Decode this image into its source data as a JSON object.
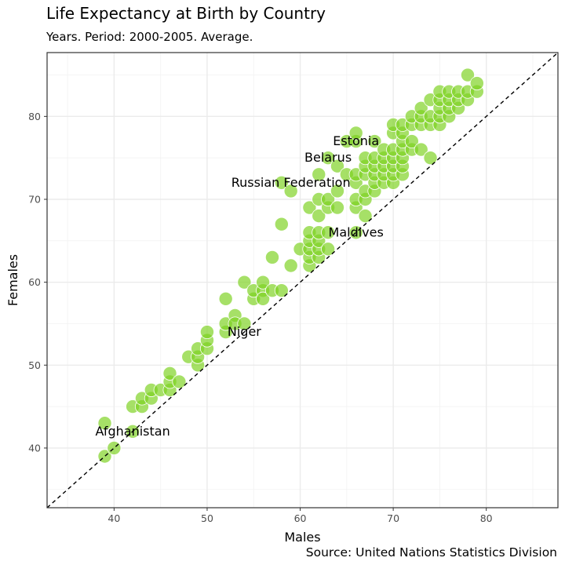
{
  "chart_data": {
    "type": "scatter",
    "title": "Life Expectancy at Birth by Country",
    "subtitle": "Years. Period: 2000-2005. Average.",
    "caption": "Source: United Nations Statistics Division",
    "xlabel": "Males",
    "ylabel": "Females",
    "xlim": [
      32.8,
      87.7
    ],
    "ylim": [
      32.8,
      87.7
    ],
    "x_ticks": [
      40,
      50,
      60,
      70,
      80
    ],
    "y_ticks": [
      40,
      50,
      60,
      70,
      80
    ],
    "grid": true,
    "reference_line": "y = x (dashed)",
    "point_color": "#7cd21f",
    "annotations": [
      {
        "label": "Estonia",
        "x": 66,
        "y": 77
      },
      {
        "label": "Belarus",
        "x": 63,
        "y": 75
      },
      {
        "label": "Russian Federation",
        "x": 59,
        "y": 72
      },
      {
        "label": "Maldives",
        "x": 66,
        "y": 66
      },
      {
        "label": "Niger",
        "x": 54,
        "y": 54
      },
      {
        "label": "Afghanistan",
        "x": 42,
        "y": 42
      }
    ],
    "points": [
      [
        39,
        39
      ],
      [
        39,
        43
      ],
      [
        40,
        40
      ],
      [
        42,
        42
      ],
      [
        42,
        45
      ],
      [
        43,
        45
      ],
      [
        43,
        46
      ],
      [
        44,
        46
      ],
      [
        44,
        47
      ],
      [
        45,
        47
      ],
      [
        46,
        47
      ],
      [
        46,
        48
      ],
      [
        46,
        49
      ],
      [
        47,
        48
      ],
      [
        48,
        51
      ],
      [
        49,
        50
      ],
      [
        49,
        51
      ],
      [
        49,
        52
      ],
      [
        50,
        52
      ],
      [
        50,
        53
      ],
      [
        50,
        54
      ],
      [
        52,
        54
      ],
      [
        52,
        55
      ],
      [
        52,
        58
      ],
      [
        53,
        56
      ],
      [
        53,
        55
      ],
      [
        54,
        55
      ],
      [
        54,
        60
      ],
      [
        55,
        58
      ],
      [
        55,
        59
      ],
      [
        56,
        59
      ],
      [
        56,
        60
      ],
      [
        56,
        58
      ],
      [
        57,
        59
      ],
      [
        57,
        63
      ],
      [
        58,
        59
      ],
      [
        58,
        67
      ],
      [
        58,
        72
      ],
      [
        59,
        71
      ],
      [
        59,
        62
      ],
      [
        60,
        64
      ],
      [
        61,
        62
      ],
      [
        61,
        63
      ],
      [
        61,
        64
      ],
      [
        61,
        65
      ],
      [
        61,
        66
      ],
      [
        61,
        69
      ],
      [
        62,
        63
      ],
      [
        62,
        64
      ],
      [
        62,
        65
      ],
      [
        62,
        66
      ],
      [
        62,
        68
      ],
      [
        62,
        70
      ],
      [
        62,
        73
      ],
      [
        63,
        64
      ],
      [
        63,
        66
      ],
      [
        63,
        69
      ],
      [
        63,
        70
      ],
      [
        63,
        75
      ],
      [
        64,
        69
      ],
      [
        64,
        71
      ],
      [
        64,
        74
      ],
      [
        65,
        73
      ],
      [
        65,
        77
      ],
      [
        66,
        66
      ],
      [
        66,
        69
      ],
      [
        66,
        70
      ],
      [
        66,
        72
      ],
      [
        66,
        73
      ],
      [
        66,
        77
      ],
      [
        66,
        78
      ],
      [
        67,
        68
      ],
      [
        67,
        70
      ],
      [
        67,
        71
      ],
      [
        67,
        73
      ],
      [
        67,
        74
      ],
      [
        67,
        75
      ],
      [
        68,
        71
      ],
      [
        68,
        72
      ],
      [
        68,
        73
      ],
      [
        68,
        74
      ],
      [
        68,
        75
      ],
      [
        68,
        77
      ],
      [
        69,
        72
      ],
      [
        69,
        73
      ],
      [
        69,
        74
      ],
      [
        69,
        75
      ],
      [
        69,
        76
      ],
      [
        70,
        72
      ],
      [
        70,
        73
      ],
      [
        70,
        74
      ],
      [
        70,
        75
      ],
      [
        70,
        76
      ],
      [
        70,
        78
      ],
      [
        70,
        79
      ],
      [
        71,
        73
      ],
      [
        71,
        74
      ],
      [
        71,
        75
      ],
      [
        71,
        76
      ],
      [
        71,
        77
      ],
      [
        71,
        78
      ],
      [
        71,
        79
      ],
      [
        72,
        76
      ],
      [
        72,
        77
      ],
      [
        72,
        79
      ],
      [
        72,
        80
      ],
      [
        73,
        76
      ],
      [
        73,
        79
      ],
      [
        73,
        80
      ],
      [
        73,
        81
      ],
      [
        74,
        75
      ],
      [
        74,
        79
      ],
      [
        74,
        80
      ],
      [
        74,
        82
      ],
      [
        75,
        79
      ],
      [
        75,
        80
      ],
      [
        75,
        81
      ],
      [
        75,
        82
      ],
      [
        75,
        83
      ],
      [
        76,
        80
      ],
      [
        76,
        81
      ],
      [
        76,
        82
      ],
      [
        76,
        83
      ],
      [
        77,
        81
      ],
      [
        77,
        82
      ],
      [
        77,
        83
      ],
      [
        78,
        82
      ],
      [
        78,
        83
      ],
      [
        78,
        85
      ],
      [
        79,
        83
      ],
      [
        79,
        84
      ]
    ]
  }
}
